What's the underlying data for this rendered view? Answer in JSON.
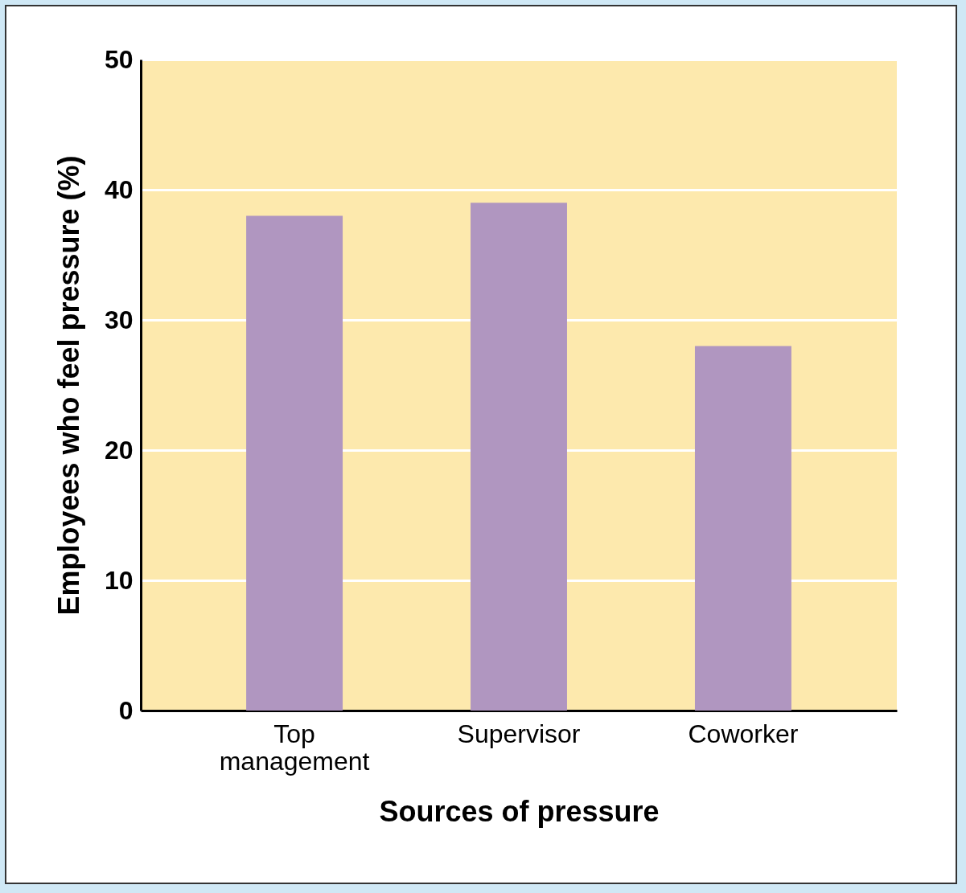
{
  "chart_data": {
    "type": "bar",
    "xlabel": "Sources of pressure",
    "ylabel": "Employees who feel pressure (%)",
    "categories": [
      "Top management",
      "Supervisor",
      "Coworker"
    ],
    "values": [
      38,
      39,
      28
    ],
    "color": "#b096c0",
    "ylim": [
      0,
      50
    ],
    "yticks": [
      0,
      10,
      20,
      30,
      40,
      50
    ],
    "grid": "y"
  }
}
